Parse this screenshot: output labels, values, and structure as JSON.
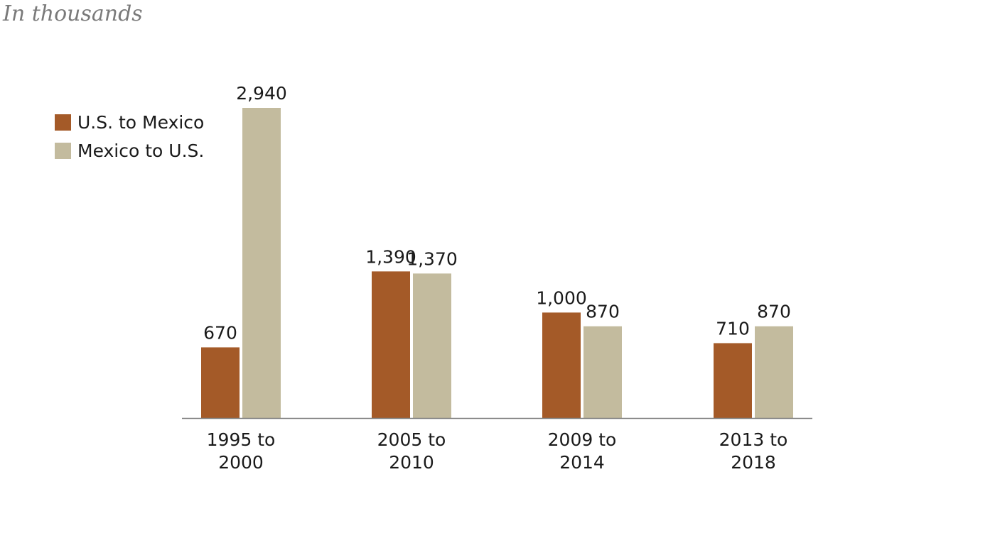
{
  "chart_data": {
    "type": "bar",
    "subtitle": "In thousands",
    "categories": [
      [
        "1995 to",
        "2000"
      ],
      [
        "2005 to",
        "2010"
      ],
      [
        "2009 to",
        "2014"
      ],
      [
        "2013 to",
        "2018"
      ]
    ],
    "series": [
      {
        "name": "U.S. to Mexico",
        "color": "#a45a28",
        "values": [
          670,
          1390,
          1000,
          710
        ],
        "labels": [
          "670",
          "1,390",
          "1,000",
          "710"
        ]
      },
      {
        "name": "Mexico to U.S.",
        "color": "#c3bb9e",
        "values": [
          2940,
          1370,
          870,
          870
        ],
        "labels": [
          "2,940",
          "1,370",
          "870",
          "870"
        ]
      }
    ],
    "ylim": [
      0,
      2940
    ],
    "grid": false,
    "legend_position": "top-left"
  }
}
